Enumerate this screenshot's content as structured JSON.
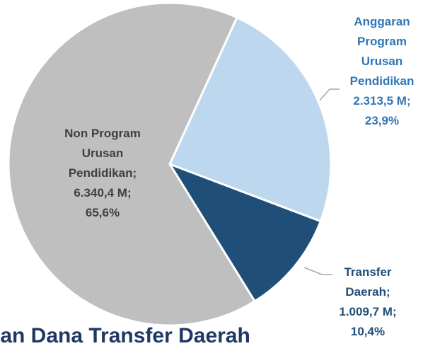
{
  "chart_data": {
    "type": "pie",
    "title": "ian Dana Transfer Daerah",
    "label_lines": [
      [
        "Anggaran",
        "Program",
        "Urusan",
        "Pendidikan"
      ],
      [
        "Transfer",
        "Daerah;"
      ],
      [
        "Non Program",
        "Urusan",
        "Pendidikan;"
      ]
    ],
    "amounts": [
      2313.5,
      1009.7,
      6340.4
    ],
    "amount_labels": [
      "2.313,5 M;",
      "1.009,7 M;",
      "6.340,4 M;"
    ],
    "values": [
      23.9,
      10.4,
      65.6
    ],
    "value_labels": [
      "23,9%",
      "10,4%",
      "65,6%"
    ],
    "colors": [
      "#bdd7ee",
      "#1f4e79",
      "#bfbfbf"
    ],
    "label_colors": [
      "#2e75b6",
      "#1f4e79",
      "#404040"
    ]
  }
}
